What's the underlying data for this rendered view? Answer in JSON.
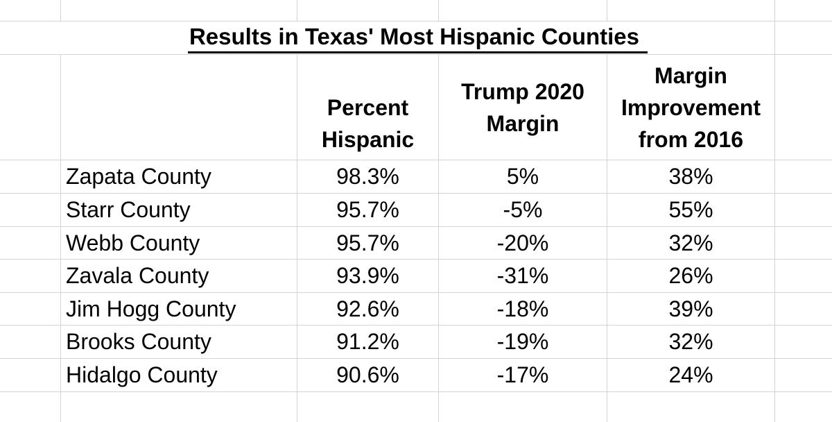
{
  "sheet": {
    "title": "Results in Texas' Most Hispanic Counties",
    "headers": {
      "county": "",
      "percent_hispanic": "Percent\nHispanic",
      "trump_2020_margin": "Trump 2020\nMargin",
      "margin_improvement": "Margin\nImprovement\nfrom 2016"
    },
    "rows": [
      {
        "county": "Zapata County",
        "percent_hispanic": "98.3%",
        "trump_2020_margin": "5%",
        "margin_improvement": "38%"
      },
      {
        "county": "Starr County",
        "percent_hispanic": "95.7%",
        "trump_2020_margin": "-5%",
        "margin_improvement": "55%"
      },
      {
        "county": "Webb County",
        "percent_hispanic": "95.7%",
        "trump_2020_margin": "-20%",
        "margin_improvement": "32%"
      },
      {
        "county": "Zavala County",
        "percent_hispanic": "93.9%",
        "trump_2020_margin": "-31%",
        "margin_improvement": "26%"
      },
      {
        "county": "Jim Hogg County",
        "percent_hispanic": "92.6%",
        "trump_2020_margin": "-18%",
        "margin_improvement": "39%"
      },
      {
        "county": "Brooks County",
        "percent_hispanic": "91.2%",
        "trump_2020_margin": "-19%",
        "margin_improvement": "32%"
      },
      {
        "county": "Hidalgo County",
        "percent_hispanic": "90.6%",
        "trump_2020_margin": "-17%",
        "margin_improvement": "24%"
      }
    ],
    "colors": {
      "gridline": "#d3d3d3",
      "text": "#000000",
      "background": "#ffffff"
    }
  }
}
